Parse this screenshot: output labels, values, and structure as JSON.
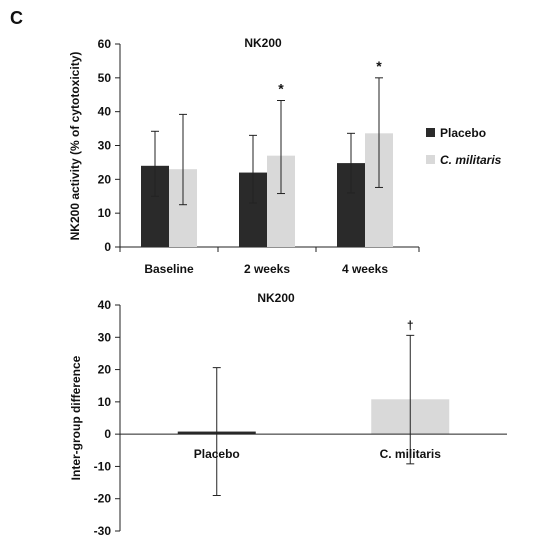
{
  "panel_label": "C",
  "chart_data": [
    {
      "type": "bar",
      "title": "NK200",
      "ylabel": "NK200 activity (% of cytotoxicity)",
      "xlabel": "",
      "ylim": [
        0,
        60
      ],
      "yticks": [
        0,
        10,
        20,
        30,
        40,
        50,
        60
      ],
      "categories": [
        "Baseline",
        "2 weeks",
        "4 weeks"
      ],
      "grid": false,
      "legend_position": "right",
      "series": [
        {
          "name": "Placebo",
          "color": "#2a2a2a",
          "values": [
            24,
            22,
            24.8
          ],
          "error_low": [
            15,
            13,
            16
          ],
          "error_high": [
            34.2,
            33,
            33.6
          ]
        },
        {
          "name": "C. militaris",
          "color": "#d9d9d9",
          "values": [
            23,
            27,
            33.6
          ],
          "error_low": [
            12.5,
            15.8,
            17.6
          ],
          "error_high": [
            39.2,
            43.3,
            50
          ]
        }
      ],
      "annotations": [
        {
          "category": "2 weeks",
          "series": "C. militaris",
          "text": "*"
        },
        {
          "category": "4 weeks",
          "series": "C. militaris",
          "text": "*"
        }
      ]
    },
    {
      "type": "bar",
      "title": "NK200",
      "ylabel": "Inter-group difference",
      "xlabel": "",
      "ylim": [
        -30,
        40
      ],
      "yticks": [
        -30,
        -20,
        -10,
        0,
        10,
        20,
        30,
        40
      ],
      "categories": [
        "Placebo",
        "C. militaris"
      ],
      "grid": false,
      "series": [
        {
          "colors": [
            "#2a2a2a",
            "#d9d9d9"
          ],
          "values": [
            0.8,
            10.8
          ],
          "error_low": [
            -19,
            -9.2
          ],
          "error_high": [
            20.6,
            30.6
          ]
        }
      ],
      "annotations": [
        {
          "category": "C. militaris",
          "text": "†"
        }
      ]
    }
  ]
}
